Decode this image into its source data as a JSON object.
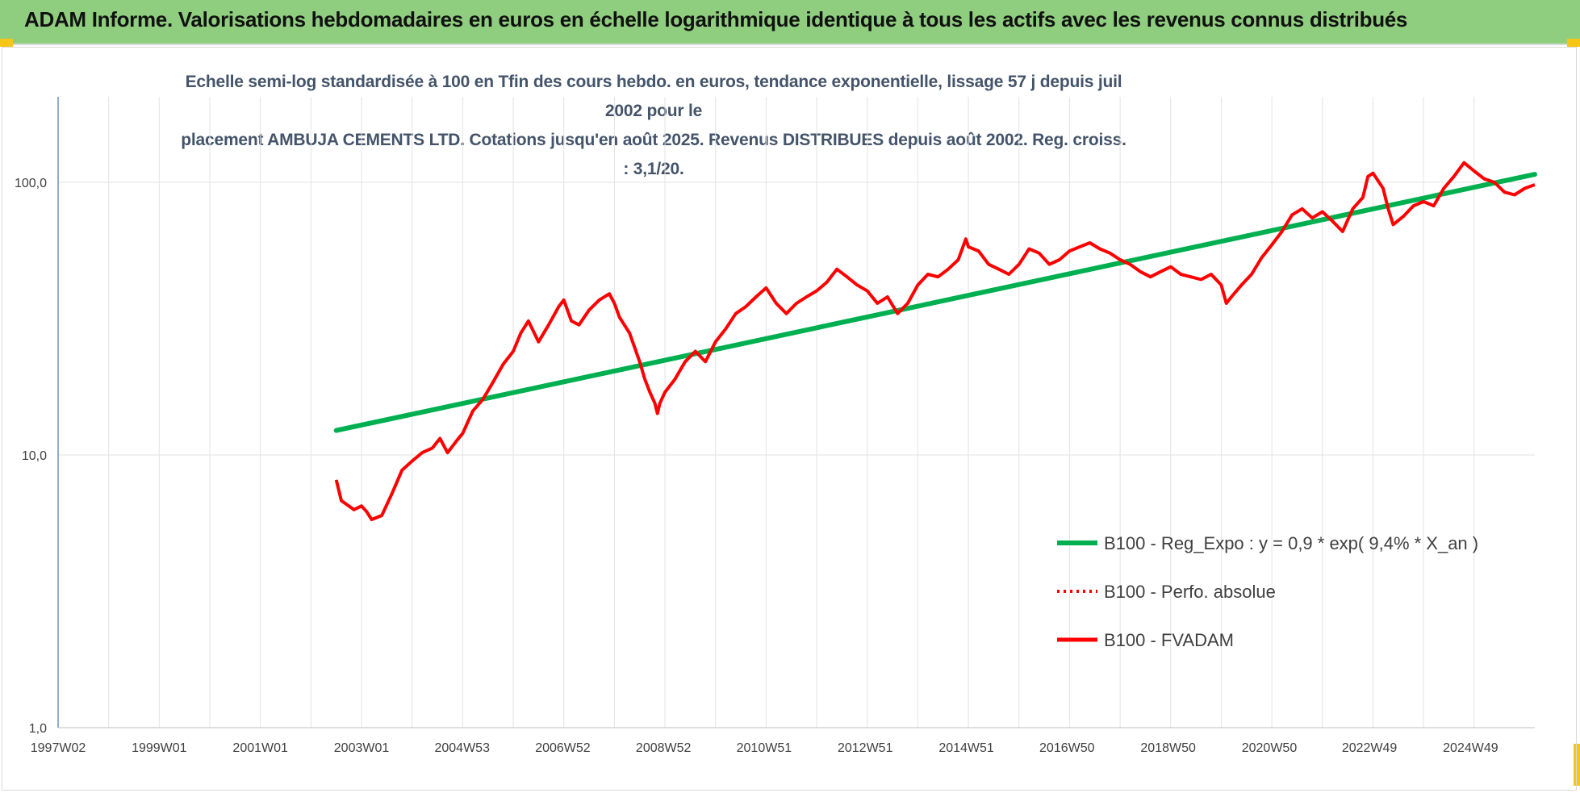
{
  "banner": {
    "title": "ADAM Informe. Valorisations hebdomadaires en euros en échelle logarithmique identique à tous les actifs avec les revenus connus distribués"
  },
  "colors": {
    "banner_bg": "#8fce7e",
    "trend": "#00b050",
    "series": "#ff0000",
    "title_text": "#44546a",
    "corner_accent": "#f5c518"
  },
  "chart_data": {
    "type": "line",
    "title_line1": "Echelle semi-log standardisée à 100 en Tfin des cours hebdo. en euros, tendance exponentielle, lissage 57 j depuis juil 2002 pour le",
    "title_line2": "placement AMBUJA CEMENTS LTD. Cotations jusqu'en août 2025. Revenus DISTRIBUES depuis août 2002. Reg. croiss. : 3,1/20.",
    "y_scale": "log",
    "ylim": [
      1,
      200
    ],
    "y_ticks": [
      {
        "value": 1,
        "label": "1,0"
      },
      {
        "value": 10,
        "label": "10,0"
      },
      {
        "value": 100,
        "label": "100,0"
      }
    ],
    "xlim": [
      1997.0,
      2026.2
    ],
    "x_ticks": [
      {
        "value": 1997.0,
        "label": "1997W02"
      },
      {
        "value": 1999.0,
        "label": "1999W01"
      },
      {
        "value": 2001.0,
        "label": "2001W01"
      },
      {
        "value": 2003.0,
        "label": "2003W01"
      },
      {
        "value": 2004.99,
        "label": "2004W53"
      },
      {
        "value": 2006.98,
        "label": "2006W52"
      },
      {
        "value": 2008.97,
        "label": "2008W52"
      },
      {
        "value": 2010.96,
        "label": "2010W51"
      },
      {
        "value": 2012.96,
        "label": "2012W51"
      },
      {
        "value": 2014.96,
        "label": "2014W51"
      },
      {
        "value": 2016.95,
        "label": "2016W50"
      },
      {
        "value": 2018.95,
        "label": "2018W50"
      },
      {
        "value": 2020.95,
        "label": "2020W50"
      },
      {
        "value": 2022.93,
        "label": "2022W49"
      },
      {
        "value": 2024.93,
        "label": "2024W49"
      }
    ],
    "grid": "vertical",
    "legend_position": "bottom-right",
    "series": [
      {
        "name": "B100 - Reg_Expo : y = 0,9 * exp( 9,4% *  X_an )",
        "style": "solid-thick",
        "x": [
          2002.5,
          2026.2
        ],
        "y": [
          12.3,
          107
        ]
      },
      {
        "name": "B100 - Perfo. absolue",
        "style": "dotted",
        "x": [],
        "y": []
      },
      {
        "name": "B100 - FVADAM",
        "style": "solid",
        "x": [
          2002.5,
          2002.6,
          2002.7,
          2002.85,
          2003.0,
          2003.1,
          2003.2,
          2003.4,
          2003.6,
          2003.8,
          2004.0,
          2004.2,
          2004.4,
          2004.55,
          2004.7,
          2004.9,
          2005.0,
          2005.2,
          2005.4,
          2005.6,
          2005.8,
          2006.0,
          2006.15,
          2006.3,
          2006.5,
          2006.7,
          2006.9,
          2007.0,
          2007.15,
          2007.3,
          2007.5,
          2007.7,
          2007.9,
          2008.0,
          2008.1,
          2008.3,
          2008.5,
          2008.6,
          2008.7,
          2008.8,
          2008.85,
          2008.9,
          2009.0,
          2009.2,
          2009.4,
          2009.6,
          2009.8,
          2010.0,
          2010.2,
          2010.4,
          2010.6,
          2010.8,
          2011.0,
          2011.2,
          2011.4,
          2011.6,
          2011.8,
          2012.0,
          2012.2,
          2012.4,
          2012.6,
          2012.8,
          2013.0,
          2013.2,
          2013.4,
          2013.6,
          2013.8,
          2014.0,
          2014.2,
          2014.4,
          2014.6,
          2014.8,
          2014.95,
          2015.0,
          2015.2,
          2015.4,
          2015.6,
          2015.8,
          2016.0,
          2016.2,
          2016.4,
          2016.6,
          2016.8,
          2017.0,
          2017.2,
          2017.4,
          2017.6,
          2017.8,
          2018.0,
          2018.2,
          2018.4,
          2018.6,
          2018.8,
          2019.0,
          2019.2,
          2019.4,
          2019.6,
          2019.8,
          2020.0,
          2020.1,
          2020.2,
          2020.4,
          2020.6,
          2020.8,
          2021.0,
          2021.2,
          2021.4,
          2021.6,
          2021.8,
          2022.0,
          2022.2,
          2022.4,
          2022.6,
          2022.8,
          2022.9,
          2023.0,
          2023.2,
          2023.3,
          2023.4,
          2023.6,
          2023.8,
          2024.0,
          2024.2,
          2024.4,
          2024.6,
          2024.8,
          2025.0,
          2025.2,
          2025.4,
          2025.6,
          2025.8,
          2026.0,
          2026.2
        ],
        "y": [
          8.1,
          6.8,
          6.6,
          6.3,
          6.5,
          6.2,
          5.8,
          6.0,
          7.2,
          8.8,
          9.5,
          10.2,
          10.6,
          11.5,
          10.2,
          11.4,
          12.0,
          14.5,
          16.0,
          18.5,
          21.5,
          24.0,
          28.0,
          31.0,
          26.0,
          30.0,
          35.0,
          37.0,
          31.0,
          30.0,
          34.0,
          37.0,
          39.0,
          36.0,
          32.0,
          28.0,
          22.0,
          19.0,
          17.0,
          15.5,
          14.2,
          15.5,
          17.0,
          19.0,
          22.0,
          24.0,
          22.0,
          26.0,
          29.0,
          33.0,
          35.0,
          38.0,
          41.0,
          36.0,
          33.0,
          36.0,
          38.0,
          40.0,
          43.0,
          48.0,
          45.0,
          42.0,
          40.0,
          36.0,
          38.0,
          33.0,
          36.0,
          42.0,
          46.0,
          45.0,
          48.0,
          52.0,
          62.0,
          58.0,
          56.0,
          50.0,
          48.0,
          46.0,
          50.0,
          57.0,
          55.0,
          50.0,
          52.0,
          56.0,
          58.0,
          60.0,
          57.0,
          55.0,
          52.0,
          50.0,
          47.0,
          45.0,
          47.0,
          49.0,
          46.0,
          45.0,
          44.0,
          46.0,
          42.0,
          36.0,
          38.0,
          42.0,
          46.0,
          53.0,
          59.0,
          66.0,
          76.0,
          80.0,
          74.0,
          78.0,
          72.0,
          66.0,
          80.0,
          88.0,
          105.0,
          108.0,
          95.0,
          80.0,
          70.0,
          75.0,
          82.0,
          85.0,
          82.0,
          95.0,
          105.0,
          118.0,
          110.0,
          103.0,
          100.0,
          92.0,
          90.0,
          95.0,
          98.0
        ]
      }
    ]
  }
}
